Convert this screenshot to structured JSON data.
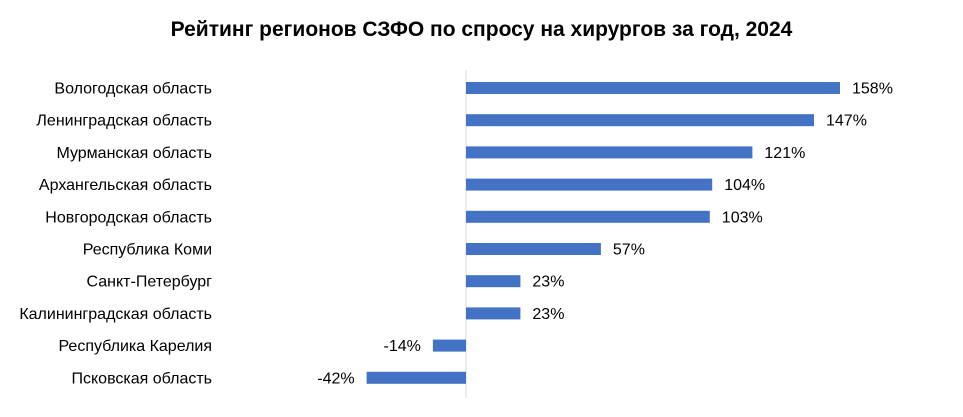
{
  "chart_data": {
    "type": "bar",
    "orientation": "horizontal",
    "title": "Рейтинг регионов СЗФО по спросу на хирургов за год, 2024",
    "categories": [
      "Вологодская область",
      "Ленинградская область",
      "Мурманская область",
      "Архангельская область",
      "Новгородская область",
      "Республика Коми",
      "Санкт-Петербург",
      "Калининградская область",
      "Республика Карелия",
      "Псковская область"
    ],
    "values": [
      158,
      147,
      121,
      104,
      103,
      57,
      23,
      23,
      -14,
      -42
    ],
    "value_labels": [
      "158%",
      "147%",
      "121%",
      "104%",
      "103%",
      "57%",
      "23%",
      "23%",
      "-14%",
      "-42%"
    ],
    "unit": "%",
    "bar_color": "#4472C4",
    "grid": false,
    "legend": "none"
  }
}
